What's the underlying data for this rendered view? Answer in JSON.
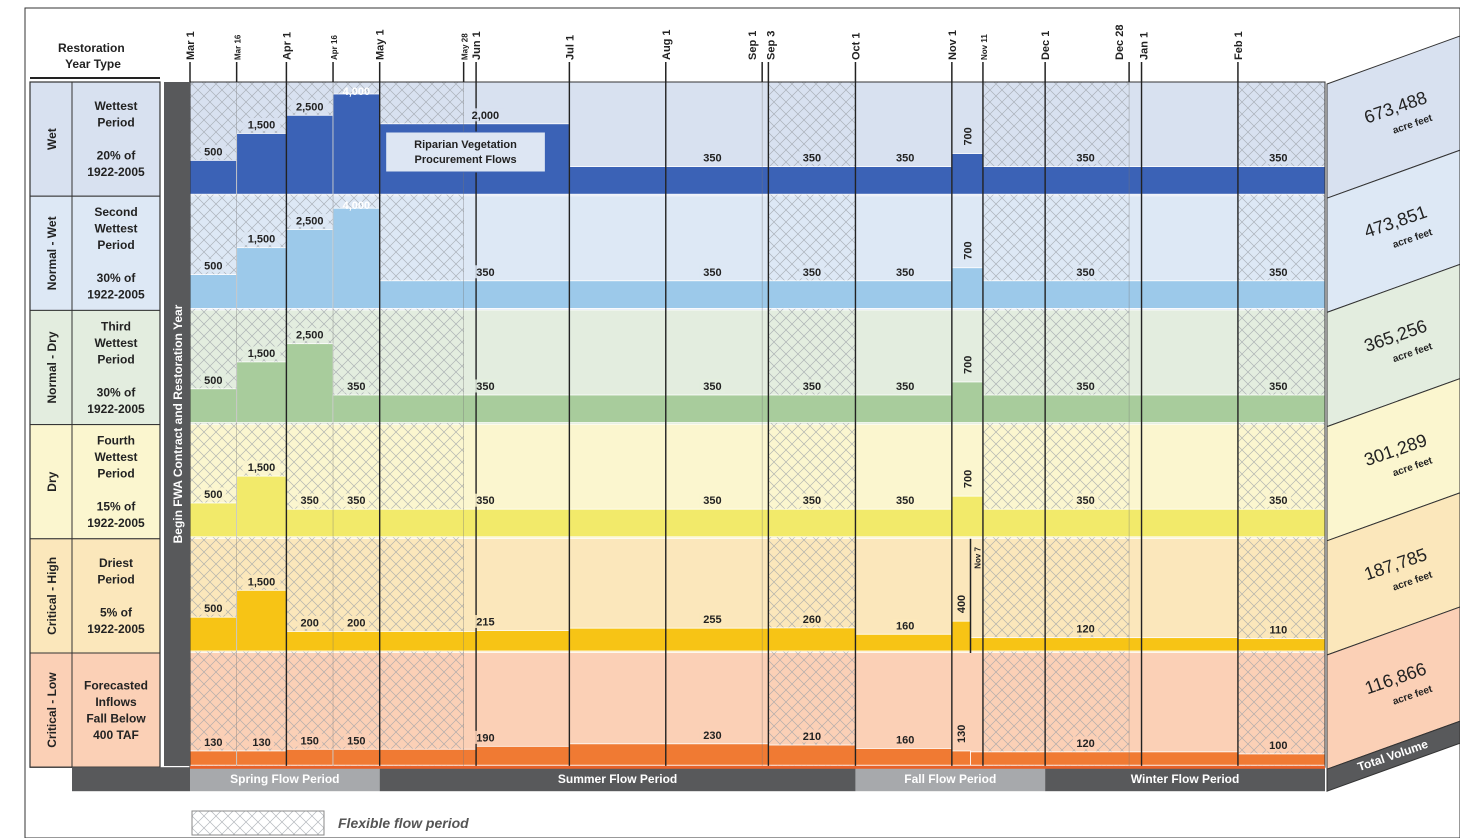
{
  "header": {
    "restoration_year_type": "Restoration Year Type",
    "contract_label": "Begin FWA Contract and Restoration Year"
  },
  "dates": [
    {
      "label": "Mar 1",
      "day": 0
    },
    {
      "label": "Mar 16",
      "day": 15
    },
    {
      "label": "Apr 1",
      "day": 31
    },
    {
      "label": "Apr 16",
      "day": 46
    },
    {
      "label": "May 1",
      "day": 61
    },
    {
      "label": "May 28",
      "day": 88
    },
    {
      "label": "Jun 1",
      "day": 92
    },
    {
      "label": "Jul 1",
      "day": 122
    },
    {
      "label": "Aug 1",
      "day": 153
    },
    {
      "label": "Sep 1",
      "day": 184
    },
    {
      "label": "Sep 3",
      "day": 186
    },
    {
      "label": "Oct 1",
      "day": 214
    },
    {
      "label": "Nov 1",
      "day": 245
    },
    {
      "label": "Nov 11",
      "day": 255
    },
    {
      "label": "Dec 1",
      "day": 275
    },
    {
      "label": "Dec 28",
      "day": 302
    },
    {
      "label": "Jan 1",
      "day": 306
    },
    {
      "label": "Feb 1",
      "day": 337
    }
  ],
  "flexible_periods": [
    [
      0,
      15
    ],
    [
      15,
      31
    ],
    [
      31,
      46
    ],
    [
      46,
      61
    ],
    [
      61,
      88
    ],
    [
      186,
      214
    ],
    [
      255,
      275
    ],
    [
      275,
      302
    ],
    [
      337,
      365
    ]
  ],
  "year_types": [
    {
      "name": "Wet",
      "description": [
        "Wettest",
        "Period",
        "",
        "20% of",
        "1922-2005"
      ],
      "color": "#d8e1f0",
      "flow_color": "#3b62b6",
      "volume": "673,488",
      "volume_unit": "acre feet",
      "segments": [
        [
          0,
          15,
          500
        ],
        [
          15,
          31,
          1500
        ],
        [
          31,
          46,
          2500
        ],
        [
          46,
          61,
          4000
        ],
        [
          61,
          122,
          2000
        ],
        [
          122,
          245,
          350
        ],
        [
          245,
          255,
          700
        ],
        [
          255,
          365,
          350
        ]
      ],
      "labels": [
        {
          "text": "500",
          "day": 7.5
        },
        {
          "text": "1,500",
          "day": 23
        },
        {
          "text": "2,500",
          "day": 38.5
        },
        {
          "text": "4,000",
          "day": 53.5
        },
        {
          "text": "2,000",
          "day": 95
        },
        {
          "text": "350",
          "day": 168
        },
        {
          "text": "350",
          "day": 200
        },
        {
          "text": "350",
          "day": 230
        },
        {
          "text": "700",
          "day": 250
        },
        {
          "text": "350",
          "day": 288
        },
        {
          "text": "350",
          "day": 350
        }
      ],
      "note": "Riparian Vegetation Procurement Flows"
    },
    {
      "name": "Normal - Wet",
      "description": [
        "Second",
        "Wettest",
        "Period",
        "",
        "30% of",
        "1922-2005"
      ],
      "color": "#dde8f5",
      "flow_color": "#9cc9ea",
      "volume": "473,851",
      "volume_unit": "acre feet",
      "segments": [
        [
          0,
          15,
          500
        ],
        [
          15,
          31,
          1500
        ],
        [
          31,
          46,
          2500
        ],
        [
          46,
          61,
          4000
        ],
        [
          61,
          245,
          350
        ],
        [
          245,
          255,
          700
        ],
        [
          255,
          365,
          350
        ]
      ],
      "labels": [
        {
          "text": "500",
          "day": 7.5
        },
        {
          "text": "1,500",
          "day": 23
        },
        {
          "text": "2,500",
          "day": 38.5
        },
        {
          "text": "4,000",
          "day": 53.5
        },
        {
          "text": "350",
          "day": 95
        },
        {
          "text": "350",
          "day": 168
        },
        {
          "text": "350",
          "day": 200
        },
        {
          "text": "350",
          "day": 230
        },
        {
          "text": "700",
          "day": 250
        },
        {
          "text": "350",
          "day": 288
        },
        {
          "text": "350",
          "day": 350
        }
      ]
    },
    {
      "name": "Normal - Dry",
      "description": [
        "Third",
        "Wettest",
        "Period",
        "",
        "30% of",
        "1922-2005"
      ],
      "color": "#e3eddf",
      "flow_color": "#a8cc9c",
      "volume": "365,256",
      "volume_unit": "acre feet",
      "segments": [
        [
          0,
          15,
          500
        ],
        [
          15,
          31,
          1500
        ],
        [
          31,
          46,
          2500
        ],
        [
          46,
          245,
          350
        ],
        [
          245,
          255,
          700
        ],
        [
          255,
          365,
          350
        ]
      ],
      "labels": [
        {
          "text": "500",
          "day": 7.5
        },
        {
          "text": "1,500",
          "day": 23
        },
        {
          "text": "2,500",
          "day": 38.5
        },
        {
          "text": "350",
          "day": 53.5
        },
        {
          "text": "350",
          "day": 95
        },
        {
          "text": "350",
          "day": 168
        },
        {
          "text": "350",
          "day": 200
        },
        {
          "text": "350",
          "day": 230
        },
        {
          "text": "700",
          "day": 250
        },
        {
          "text": "350",
          "day": 288
        },
        {
          "text": "350",
          "day": 350
        }
      ]
    },
    {
      "name": "Dry",
      "description": [
        "Fourth",
        "Wettest",
        "Period",
        "",
        "15% of",
        "1922-2005"
      ],
      "color": "#fbf6cf",
      "flow_color": "#f2ea6a",
      "volume": "301,289",
      "volume_unit": "acre feet",
      "segments": [
        [
          0,
          15,
          500
        ],
        [
          15,
          31,
          1500
        ],
        [
          31,
          245,
          350
        ],
        [
          245,
          255,
          700
        ],
        [
          255,
          365,
          350
        ]
      ],
      "labels": [
        {
          "text": "500",
          "day": 7.5
        },
        {
          "text": "1,500",
          "day": 23
        },
        {
          "text": "350",
          "day": 38.5
        },
        {
          "text": "350",
          "day": 53.5
        },
        {
          "text": "350",
          "day": 95
        },
        {
          "text": "350",
          "day": 168
        },
        {
          "text": "350",
          "day": 200
        },
        {
          "text": "350",
          "day": 230
        },
        {
          "text": "700",
          "day": 250
        },
        {
          "text": "350",
          "day": 288
        },
        {
          "text": "350",
          "day": 350
        }
      ]
    },
    {
      "name": "Critical - High",
      "description": [
        "Driest",
        "Period",
        "",
        "5% of",
        "1922-2005"
      ],
      "color": "#fbe7bb",
      "flow_color": "#f7c415",
      "volume": "187,785",
      "volume_unit": "acre feet",
      "segments": [
        [
          0,
          15,
          500
        ],
        [
          15,
          31,
          1500
        ],
        [
          31,
          92,
          200
        ],
        [
          92,
          122,
          215
        ],
        [
          122,
          186,
          255
        ],
        [
          186,
          214,
          260
        ],
        [
          214,
          245,
          160
        ],
        [
          245,
          251,
          400
        ],
        [
          251,
          337,
          120
        ],
        [
          337,
          365,
          110
        ]
      ],
      "labels": [
        {
          "text": "500",
          "day": 7.5
        },
        {
          "text": "1,500",
          "day": 23
        },
        {
          "text": "200",
          "day": 38.5
        },
        {
          "text": "200",
          "day": 53.5
        },
        {
          "text": "215",
          "day": 95
        },
        {
          "text": "255",
          "day": 168
        },
        {
          "text": "260",
          "day": 200
        },
        {
          "text": "160",
          "day": 230
        },
        {
          "text": "400",
          "day": 248
        },
        {
          "text": "120",
          "day": 288
        },
        {
          "text": "110",
          "day": 350
        }
      ],
      "marker": {
        "label": "Nov 7",
        "day": 251
      }
    },
    {
      "name": "Critical - Low",
      "description": [
        "Forecasted",
        "Inflows",
        "Fall Below",
        "400 TAF"
      ],
      "color": "#fbd0b6",
      "flow_color": "#f07a33",
      "volume": "116,866",
      "volume_unit": "acre feet",
      "segments": [
        [
          0,
          15,
          130
        ],
        [
          15,
          31,
          130
        ],
        [
          31,
          46,
          150
        ],
        [
          46,
          92,
          150
        ],
        [
          92,
          122,
          190
        ],
        [
          122,
          186,
          230
        ],
        [
          186,
          214,
          210
        ],
        [
          214,
          245,
          160
        ],
        [
          245,
          251,
          130
        ],
        [
          251,
          337,
          120
        ],
        [
          337,
          365,
          100
        ]
      ],
      "labels": [
        {
          "text": "130",
          "day": 7.5
        },
        {
          "text": "130",
          "day": 23
        },
        {
          "text": "150",
          "day": 38.5
        },
        {
          "text": "150",
          "day": 53.5
        },
        {
          "text": "190",
          "day": 95
        },
        {
          "text": "230",
          "day": 168
        },
        {
          "text": "210",
          "day": 200
        },
        {
          "text": "160",
          "day": 230
        },
        {
          "text": "130",
          "day": 248
        },
        {
          "text": "120",
          "day": 288
        },
        {
          "text": "100",
          "day": 350
        }
      ]
    }
  ],
  "periods": [
    {
      "name": "Spring Flow Period",
      "start": 0,
      "end": 61,
      "color": "#a7a9ac"
    },
    {
      "name": "Summer Flow Period",
      "start": 61,
      "end": 214,
      "color": "#58595b"
    },
    {
      "name": "Fall Flow Period",
      "start": 214,
      "end": 275,
      "color": "#a7a9ac"
    },
    {
      "name": "Winter Flow Period",
      "start": 275,
      "end": 365,
      "color": "#58595b"
    }
  ],
  "total_volume_label": "Total Volume",
  "legend": {
    "flexible_label": "Flexible flow period"
  }
}
